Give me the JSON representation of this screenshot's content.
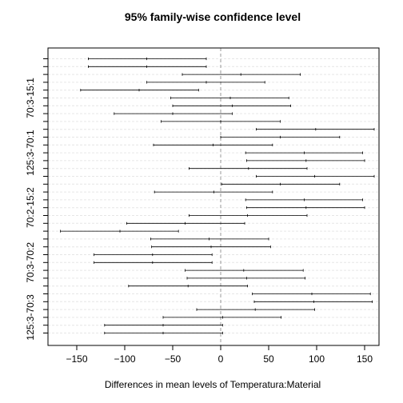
{
  "chart_data": {
    "type": "interval",
    "title": "95% family-wise confidence level",
    "xlabel": "Differences in mean levels of Temperatura:Material",
    "ylabel": "",
    "xlim": [
      -180,
      165
    ],
    "x_ticks": [
      -150,
      -100,
      -50,
      0,
      50,
      100,
      150
    ],
    "reference_line": 0,
    "grid": "horizontal-dashed",
    "y_tick_labels": [
      {
        "row": 5,
        "label": "70:3-15:1"
      },
      {
        "row": 12,
        "label": "125:3-70:1"
      },
      {
        "row": 19,
        "label": "70:2-15:2"
      },
      {
        "row": 26,
        "label": "70:3-70:2"
      },
      {
        "row": 33,
        "label": "125:3-70:3"
      }
    ],
    "intervals": [
      {
        "lwr": -138,
        "est": -77,
        "upr": -15
      },
      {
        "lwr": -138,
        "est": -77,
        "upr": -15
      },
      {
        "lwr": -40,
        "est": 21,
        "upr": 83
      },
      {
        "lwr": -77,
        "est": -15,
        "upr": 46
      },
      {
        "lwr": -146,
        "est": -85,
        "upr": -23
      },
      {
        "lwr": -52,
        "est": 10,
        "upr": 71
      },
      {
        "lwr": -50,
        "est": 12,
        "upr": 73
      },
      {
        "lwr": -111,
        "est": -50,
        "upr": 12
      },
      {
        "lwr": -62,
        "est": 0,
        "upr": 62
      },
      {
        "lwr": 37,
        "est": 99,
        "upr": 160
      },
      {
        "lwr": 0,
        "est": 62,
        "upr": 124
      },
      {
        "lwr": -70,
        "est": -8,
        "upr": 54
      },
      {
        "lwr": 26,
        "est": 87,
        "upr": 148
      },
      {
        "lwr": 27,
        "est": 89,
        "upr": 150
      },
      {
        "lwr": -33,
        "est": 29,
        "upr": 90
      },
      {
        "lwr": 37,
        "est": 98,
        "upr": 160
      },
      {
        "lwr": 1,
        "est": 62,
        "upr": 124
      },
      {
        "lwr": -69,
        "est": -7,
        "upr": 54
      },
      {
        "lwr": 26,
        "est": 87,
        "upr": 148
      },
      {
        "lwr": 27,
        "est": 89,
        "upr": 150
      },
      {
        "lwr": -33,
        "est": 28,
        "upr": 90
      },
      {
        "lwr": -98,
        "est": -37,
        "upr": 25
      },
      {
        "lwr": -167,
        "est": -105,
        "upr": -44
      },
      {
        "lwr": -73,
        "est": -12,
        "upr": 50
      },
      {
        "lwr": -72,
        "est": -10,
        "upr": 52
      },
      {
        "lwr": -132,
        "est": -71,
        "upr": -9
      },
      {
        "lwr": -132,
        "est": -71,
        "upr": -9
      },
      {
        "lwr": -37,
        "est": 24,
        "upr": 86
      },
      {
        "lwr": -35,
        "est": 27,
        "upr": 88
      },
      {
        "lwr": -96,
        "est": -34,
        "upr": 28
      },
      {
        "lwr": 33,
        "est": 95,
        "upr": 156
      },
      {
        "lwr": 35,
        "est": 97,
        "upr": 158
      },
      {
        "lwr": -25,
        "est": 36,
        "upr": 98
      },
      {
        "lwr": -60,
        "est": 2,
        "upr": 63
      },
      {
        "lwr": -121,
        "est": -60,
        "upr": 2
      },
      {
        "lwr": -121,
        "est": -60,
        "upr": 2
      }
    ]
  }
}
